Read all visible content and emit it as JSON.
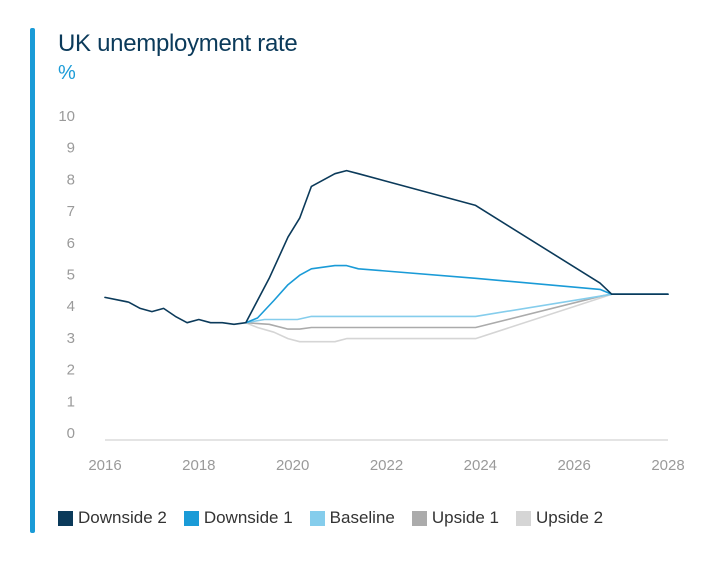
{
  "chart_data": {
    "type": "line",
    "title": "UK unemployment rate",
    "ylabel": "%",
    "xlabel": "",
    "ylim": [
      0,
      10
    ],
    "xlim": [
      2016,
      2028
    ],
    "x_ticks": [
      "2016",
      "2018",
      "2020",
      "2022",
      "2024",
      "2026",
      "2028"
    ],
    "y_ticks": [
      "0",
      "1",
      "2",
      "3",
      "4",
      "5",
      "6",
      "7",
      "8",
      "9",
      "10"
    ],
    "grid": false,
    "legend_position": "bottom",
    "series": [
      {
        "name": "Downside 2",
        "color": "#0b3a5a",
        "x": [
          2016,
          2016.5,
          2016.75,
          2017,
          2017.25,
          2017.5,
          2017.75,
          2018,
          2018.25,
          2018.5,
          2018.75,
          2019,
          2019.5,
          2019.9,
          2020.15,
          2020.4,
          2020.9,
          2021.15,
          2021.4,
          2023.9,
          2026.55,
          2026.8,
          2028
        ],
        "y": [
          4.5,
          4.35,
          4.15,
          4.05,
          4.15,
          3.9,
          3.7,
          3.8,
          3.7,
          3.7,
          3.65,
          3.7,
          5.1,
          6.4,
          7.0,
          8.0,
          8.4,
          8.5,
          8.4,
          7.4,
          4.95,
          4.6,
          4.6
        ]
      },
      {
        "name": "Downside 1",
        "color": "#1a9bd7",
        "x": [
          2019,
          2019.25,
          2019.6,
          2019.9,
          2020.15,
          2020.4,
          2020.9,
          2021.15,
          2021.4,
          2023.9,
          2026.55,
          2026.8,
          2028
        ],
        "y": [
          3.7,
          3.85,
          4.4,
          4.9,
          5.2,
          5.4,
          5.5,
          5.5,
          5.4,
          5.1,
          4.75,
          4.6,
          4.6
        ]
      },
      {
        "name": "Baseline",
        "color": "#85cdec",
        "x": [
          2019,
          2019.4,
          2020.1,
          2020.4,
          2023.9,
          2026.6,
          2026.8,
          2028
        ],
        "y": [
          3.7,
          3.8,
          3.8,
          3.9,
          3.9,
          4.55,
          4.6,
          4.6
        ]
      },
      {
        "name": "Upside 1",
        "color": "#ababab",
        "x": [
          2019,
          2019.5,
          2019.9,
          2020.15,
          2020.4,
          2023.9,
          2026.6,
          2026.8,
          2028
        ],
        "y": [
          3.7,
          3.65,
          3.5,
          3.5,
          3.55,
          3.55,
          4.55,
          4.6,
          4.6
        ]
      },
      {
        "name": "Upside 2",
        "color": "#d5d5d5",
        "x": [
          2019,
          2019.25,
          2019.6,
          2019.9,
          2020.15,
          2020.9,
          2021.15,
          2023.9,
          2026.6,
          2026.8,
          2028
        ],
        "y": [
          3.7,
          3.55,
          3.4,
          3.2,
          3.1,
          3.1,
          3.2,
          3.2,
          4.5,
          4.6,
          4.6
        ]
      }
    ]
  }
}
